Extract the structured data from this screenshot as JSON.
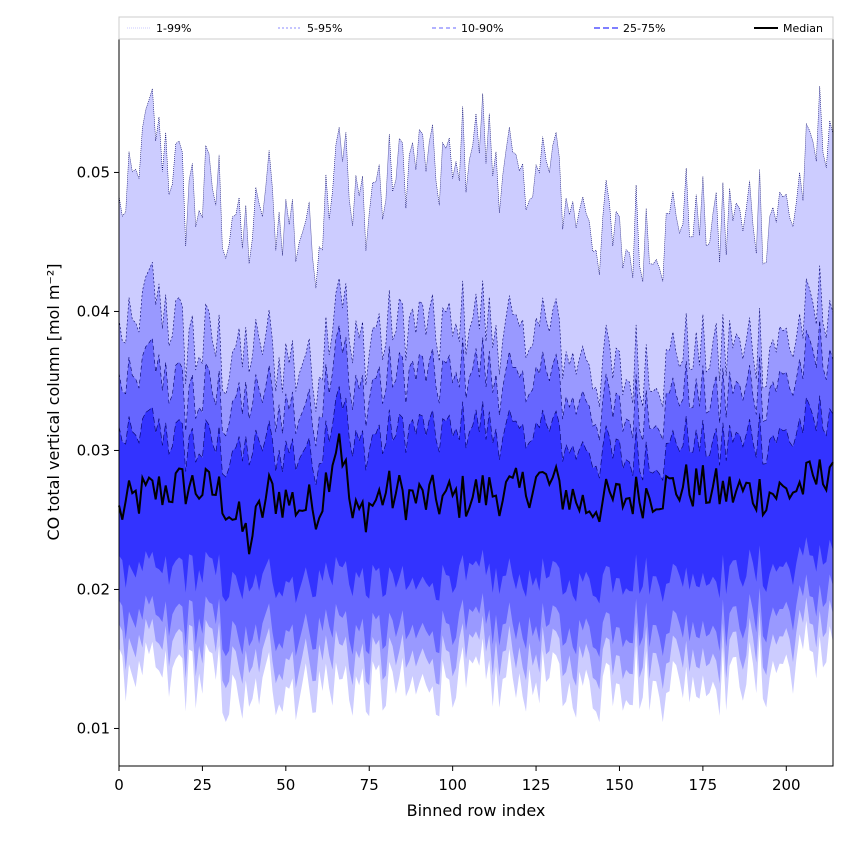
{
  "chart_data": {
    "type": "area",
    "xlabel": "Binned row index",
    "ylabel": "CO total vertical column [mol m⁻²]",
    "xlim": [
      0,
      214
    ],
    "ylim": [
      0.0073,
      0.0596
    ],
    "x_ticks": [
      "0",
      "25",
      "50",
      "75",
      "100",
      "125",
      "150",
      "175",
      "200"
    ],
    "y_ticks": [
      "0.01",
      "0.02",
      "0.03",
      "0.04",
      "0.05"
    ],
    "legend_position": "top",
    "legend": [
      "1-99%",
      "5-95%",
      "10-90%",
      "25-75%",
      "Median"
    ],
    "band_colors": [
      "#ccccff",
      "#9999ff",
      "#6666ff",
      "#3333ff"
    ],
    "median_color": "#000000",
    "n_points": 215,
    "knots_x": [
      0,
      5,
      10,
      20,
      30,
      39,
      45,
      55,
      60,
      66,
      70,
      80,
      90,
      100,
      110,
      120,
      125,
      130,
      140,
      150,
      160,
      170,
      180,
      190,
      200,
      205,
      210,
      214
    ],
    "median_knots": [
      0.0255,
      0.0265,
      0.027,
      0.0275,
      0.027,
      0.0235,
      0.027,
      0.026,
      0.026,
      0.0315,
      0.025,
      0.027,
      0.0265,
      0.0265,
      0.027,
      0.027,
      0.028,
      0.0275,
      0.026,
      0.0265,
      0.027,
      0.0275,
      0.027,
      0.027,
      0.027,
      0.0275,
      0.028,
      0.0295
    ],
    "series": [
      {
        "name": "1-99%",
        "lower_knots": [
          0.0135,
          0.014,
          0.0135,
          0.014,
          0.0135,
          0.011,
          0.0135,
          0.013,
          0.0135,
          0.014,
          0.0125,
          0.013,
          0.0125,
          0.0135,
          0.0135,
          0.013,
          0.0135,
          0.013,
          0.013,
          0.0135,
          0.0135,
          0.0135,
          0.0135,
          0.014,
          0.0145,
          0.015,
          0.0155,
          0.0165
        ],
        "upper_knots": [
          0.046,
          0.05,
          0.053,
          0.0485,
          0.048,
          0.0445,
          0.0485,
          0.046,
          0.0455,
          0.054,
          0.047,
          0.049,
          0.051,
          0.0505,
          0.052,
          0.049,
          0.0505,
          0.0495,
          0.047,
          0.0455,
          0.0455,
          0.0475,
          0.0465,
          0.047,
          0.0475,
          0.0485,
          0.0535,
          0.0535
        ]
      },
      {
        "name": "5-95%",
        "lower_knots": [
          0.0155,
          0.016,
          0.0155,
          0.016,
          0.0155,
          0.0135,
          0.0155,
          0.015,
          0.0155,
          0.0165,
          0.0145,
          0.015,
          0.0145,
          0.0155,
          0.0155,
          0.015,
          0.0155,
          0.015,
          0.015,
          0.0155,
          0.0155,
          0.0155,
          0.0155,
          0.016,
          0.0165,
          0.017,
          0.0175,
          0.0185
        ],
        "upper_knots": [
          0.0375,
          0.039,
          0.041,
          0.038,
          0.037,
          0.0365,
          0.0375,
          0.0365,
          0.036,
          0.043,
          0.037,
          0.0385,
          0.039,
          0.039,
          0.039,
          0.038,
          0.0395,
          0.038,
          0.0365,
          0.036,
          0.036,
          0.0375,
          0.0375,
          0.0375,
          0.038,
          0.0385,
          0.041,
          0.0405
        ]
      },
      {
        "name": "10-90%",
        "lower_knots": [
          0.0175,
          0.018,
          0.0175,
          0.018,
          0.0175,
          0.0155,
          0.0175,
          0.017,
          0.0175,
          0.0185,
          0.0165,
          0.017,
          0.0165,
          0.0175,
          0.0175,
          0.017,
          0.0175,
          0.017,
          0.017,
          0.0175,
          0.0175,
          0.0175,
          0.0175,
          0.018,
          0.0185,
          0.019,
          0.0195,
          0.0205
        ],
        "upper_knots": [
          0.034,
          0.035,
          0.036,
          0.034,
          0.0335,
          0.033,
          0.034,
          0.033,
          0.033,
          0.0395,
          0.0335,
          0.035,
          0.0355,
          0.0355,
          0.0355,
          0.0345,
          0.036,
          0.0345,
          0.0335,
          0.033,
          0.033,
          0.0345,
          0.034,
          0.0345,
          0.035,
          0.0355,
          0.0375,
          0.037
        ]
      },
      {
        "name": "25-75%",
        "lower_knots": [
          0.021,
          0.0215,
          0.021,
          0.0215,
          0.021,
          0.0195,
          0.021,
          0.0205,
          0.021,
          0.022,
          0.0205,
          0.0205,
          0.02,
          0.021,
          0.021,
          0.0205,
          0.021,
          0.0205,
          0.0205,
          0.021,
          0.021,
          0.021,
          0.021,
          0.0215,
          0.0215,
          0.022,
          0.0225,
          0.023
        ],
        "upper_knots": [
          0.0305,
          0.031,
          0.0315,
          0.0305,
          0.03,
          0.0295,
          0.0305,
          0.03,
          0.0295,
          0.035,
          0.03,
          0.031,
          0.0315,
          0.0315,
          0.0315,
          0.031,
          0.032,
          0.031,
          0.03,
          0.03,
          0.0295,
          0.031,
          0.0305,
          0.031,
          0.031,
          0.0315,
          0.0325,
          0.033
        ]
      }
    ]
  }
}
